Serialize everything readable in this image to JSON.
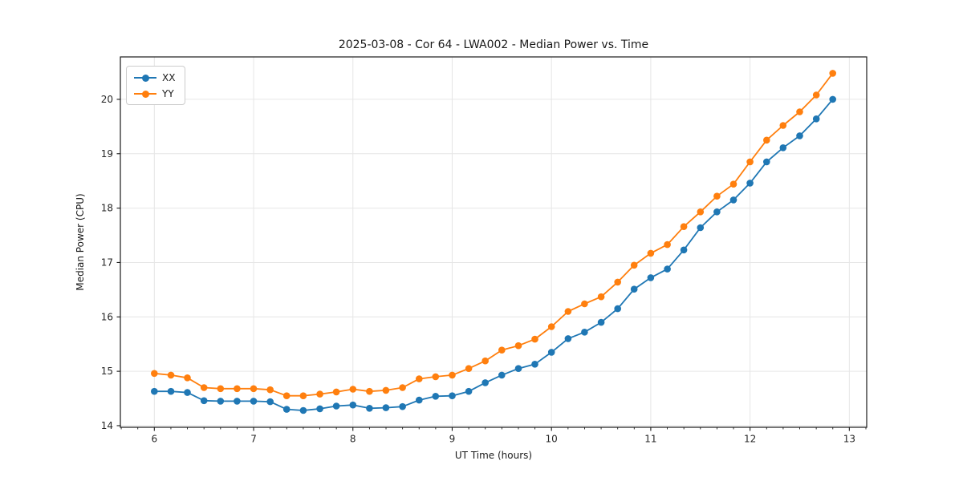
{
  "figure": {
    "title": "2025-03-08 - Cor 64 - LWA002 - Median Power vs. Time"
  },
  "chart_data": {
    "type": "line",
    "title": "2025-03-08 - Cor 64 - LWA002 - Median Power vs. Time",
    "xlabel": "UT Time (hours)",
    "ylabel": "Median Power (CPU)",
    "xlim": [
      5.658,
      13.175
    ],
    "ylim": [
      13.97,
      20.78
    ],
    "x_ticks": [
      6,
      7,
      8,
      9,
      10,
      11,
      12,
      13
    ],
    "y_ticks": [
      14,
      15,
      16,
      17,
      18,
      19,
      20
    ],
    "x_minor_step": 0.16667,
    "grid": true,
    "legend_position": "upper-left",
    "marker": "circle",
    "x": [
      6.0,
      6.167,
      6.333,
      6.5,
      6.667,
      6.833,
      7.0,
      7.167,
      7.333,
      7.5,
      7.667,
      7.833,
      8.0,
      8.167,
      8.333,
      8.5,
      8.667,
      8.833,
      9.0,
      9.167,
      9.333,
      9.5,
      9.667,
      9.833,
      10.0,
      10.167,
      10.333,
      10.5,
      10.667,
      10.833,
      11.0,
      11.167,
      11.333,
      11.5,
      11.667,
      11.833,
      12.0,
      12.167,
      12.333,
      12.5,
      12.667,
      12.833
    ],
    "series": [
      {
        "name": "XX",
        "color": "#1f77b4",
        "values": [
          14.63,
          14.63,
          14.61,
          14.46,
          14.45,
          14.45,
          14.45,
          14.44,
          14.3,
          14.28,
          14.31,
          14.36,
          14.38,
          14.32,
          14.33,
          14.35,
          14.47,
          14.54,
          14.55,
          14.63,
          14.79,
          14.93,
          15.05,
          15.13,
          15.35,
          15.6,
          15.72,
          15.9,
          16.15,
          16.51,
          16.72,
          16.88,
          17.23,
          17.64,
          17.93,
          18.15,
          18.46,
          18.85,
          19.11,
          19.33,
          19.64,
          20.0
        ]
      },
      {
        "name": "YY",
        "color": "#ff7f0e",
        "values": [
          14.96,
          14.93,
          14.88,
          14.7,
          14.68,
          14.68,
          14.68,
          14.66,
          14.55,
          14.55,
          14.58,
          14.62,
          14.67,
          14.63,
          14.65,
          14.7,
          14.86,
          14.9,
          14.93,
          15.05,
          15.19,
          15.39,
          15.47,
          15.59,
          15.82,
          16.1,
          16.24,
          16.37,
          16.64,
          16.95,
          17.17,
          17.33,
          17.66,
          17.93,
          18.22,
          18.44,
          18.85,
          19.25,
          19.52,
          19.77,
          20.08,
          20.48
        ]
      }
    ],
    "style": {
      "grid_color": "#e6e6e6",
      "spine_color": "#1a1a1a",
      "tick_color": "#1a1a1a",
      "tick_label_color": "#262626"
    }
  }
}
